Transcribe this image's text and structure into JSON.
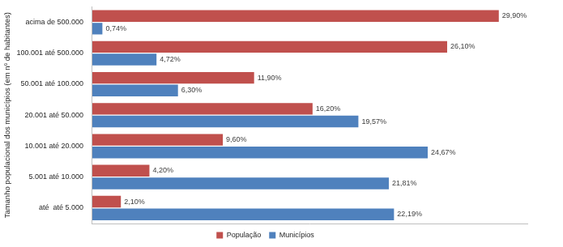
{
  "chart_data": {
    "type": "bar",
    "orientation": "horizontal",
    "y_label": "Tamanho populacional dos municípios (em nº de habitantes)",
    "categories": [
      "acima de 500.000",
      "100.001 até 500.000",
      "50.001 até 100.000",
      "20.001 até 50.000",
      "10.001 até 20.000",
      "5.001 até 10.000",
      "até  até 5.000"
    ],
    "series": [
      {
        "name": "População",
        "color": "#c0504d",
        "values": [
          29.9,
          26.1,
          11.9,
          16.2,
          9.6,
          4.2,
          2.1
        ],
        "value_labels": [
          "29,90%",
          "26,10%",
          "11,90%",
          "16,20%",
          "9,60%",
          "4,20%",
          "2,10%"
        ]
      },
      {
        "name": "Municípios",
        "color": "#4f81bd",
        "values": [
          0.74,
          4.72,
          6.3,
          19.57,
          24.67,
          21.81,
          22.19
        ],
        "value_labels": [
          "0,74%",
          "4,72%",
          "6,30%",
          "19,57%",
          "24,67%",
          "21,81%",
          "22,19%"
        ]
      }
    ],
    "xlim": [
      0,
      32
    ],
    "grid": false,
    "legend": "bottom",
    "data_labels": true,
    "tick_labels": "y"
  }
}
